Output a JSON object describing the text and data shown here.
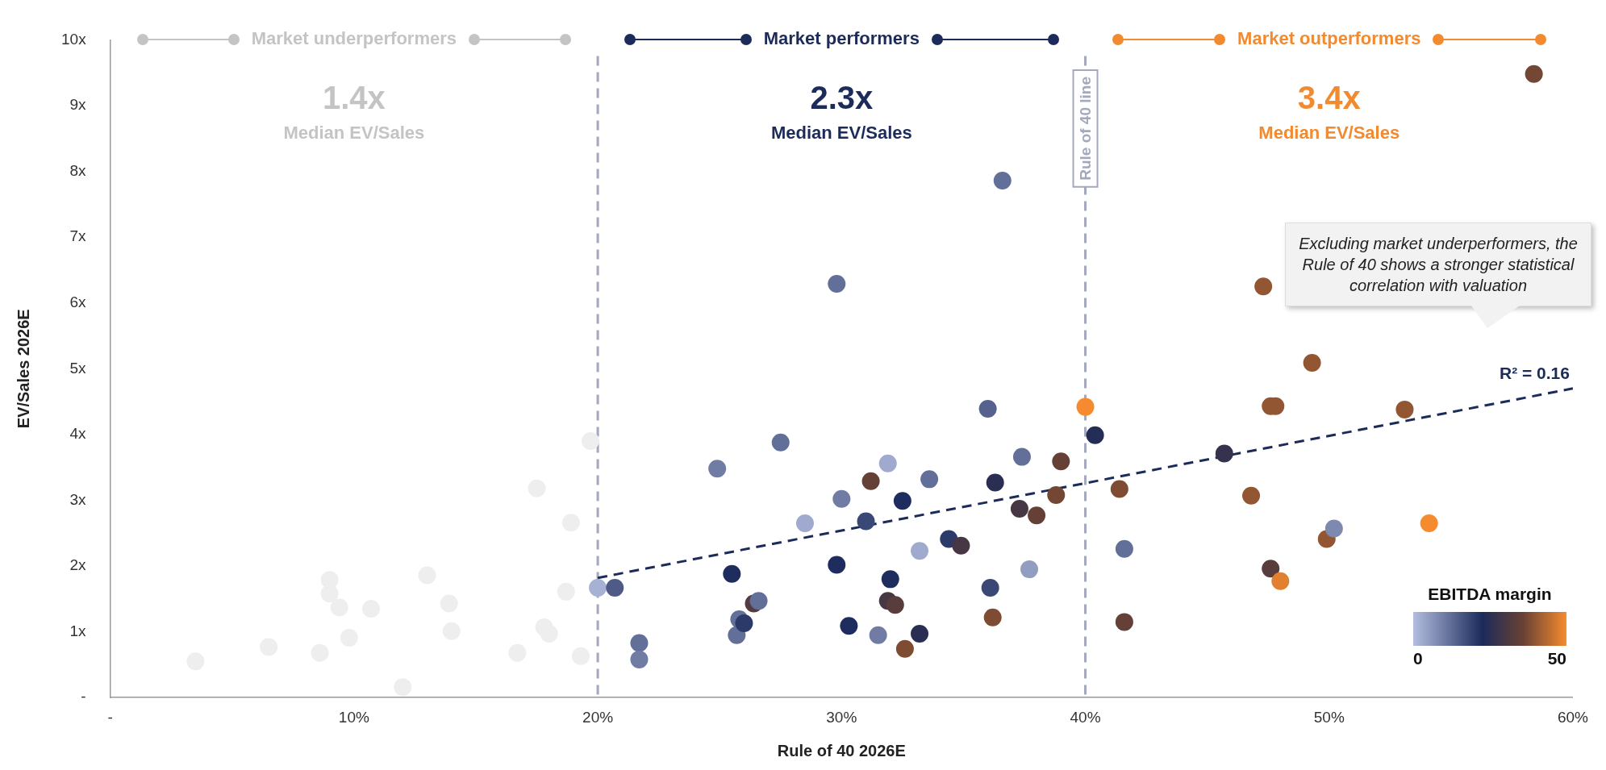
{
  "chart_data": {
    "type": "scatter",
    "xlabel": "Rule of 40 2026E",
    "ylabel": "EV/Sales 2026E",
    "clabel": "EBITDA margin",
    "xlim": [
      0,
      60
    ],
    "xticks": [
      {
        "value": 0,
        "label": "-"
      },
      {
        "value": 10,
        "label": "10%"
      },
      {
        "value": 20,
        "label": "20%"
      },
      {
        "value": 30,
        "label": "30%"
      },
      {
        "value": 40,
        "label": "40%"
      },
      {
        "value": 50,
        "label": "50%"
      },
      {
        "value": 60,
        "label": "60%"
      }
    ],
    "ylim": [
      0,
      10
    ],
    "yticks": [
      {
        "value": 0,
        "label": "-"
      },
      {
        "value": 1,
        "label": "1x"
      },
      {
        "value": 2,
        "label": "2x"
      },
      {
        "value": 3,
        "label": "3x"
      },
      {
        "value": 4,
        "label": "4x"
      },
      {
        "value": 5,
        "label": "5x"
      },
      {
        "value": 6,
        "label": "6x"
      },
      {
        "value": 7,
        "label": "7x"
      },
      {
        "value": 8,
        "label": "8x"
      },
      {
        "value": 9,
        "label": "9x"
      },
      {
        "value": 10,
        "label": "10x"
      }
    ],
    "grid": false,
    "legend": false,
    "marker": "circle",
    "series": [
      {
        "color": "#eeeeee",
        "x": [
          3.5,
          6.5,
          8.6,
          9.0,
          9.0,
          9.4,
          9.8,
          10.7,
          12.0,
          13.0,
          13.9,
          14.0,
          16.7,
          17.5,
          17.8,
          18.0,
          18.7,
          18.9,
          19.3,
          19.7
        ],
        "values": [
          0.55,
          0.77,
          0.68,
          1.79,
          1.58,
          1.37,
          0.91,
          1.35,
          0.16,
          1.86,
          1.43,
          1.01,
          0.68,
          3.18,
          1.07,
          0.97,
          1.61,
          2.66,
          0.63,
          3.9
        ]
      },
      {
        "x": [
          20.0,
          20.7,
          21.7,
          21.7,
          24.9,
          25.5,
          25.8,
          25.7,
          26.0,
          26.4,
          26.6,
          27.5,
          28.5,
          29.8,
          29.8,
          30.0,
          30.3,
          31.0,
          31.2,
          31.5,
          31.9,
          32.0,
          31.9,
          32.2,
          32.5,
          32.6,
          33.2,
          33.2,
          33.6,
          34.4,
          34.9,
          36.0,
          36.1,
          36.2,
          36.3,
          36.6,
          37.4,
          37.3,
          37.7,
          38.0,
          38.8,
          39.0,
          40.0,
          40.4,
          41.4,
          41.6,
          41.6,
          45.7,
          46.8,
          47.3,
          47.6,
          47.6,
          47.8,
          48.0,
          49.3,
          49.9,
          50.2,
          53.1,
          54.1,
          58.4
        ],
        "values": [
          1.67,
          1.67,
          0.83,
          0.58,
          3.48,
          1.88,
          1.19,
          0.95,
          1.13,
          1.43,
          1.47,
          3.88,
          2.65,
          2.02,
          6.29,
          3.02,
          1.09,
          2.68,
          3.29,
          0.95,
          3.56,
          1.8,
          1.47,
          1.41,
          2.99,
          0.74,
          2.23,
          0.97,
          3.32,
          2.41,
          2.31,
          4.39,
          1.67,
          1.22,
          3.27,
          7.86,
          3.66,
          2.87,
          1.95,
          2.77,
          3.08,
          3.59,
          4.42,
          3.99,
          3.17,
          2.26,
          1.15,
          3.71,
          3.07,
          6.25,
          1.96,
          4.43,
          4.43,
          1.77,
          5.09,
          2.41,
          2.57,
          4.38,
          2.65,
          9.48
        ],
        "colors": [
          "#a6b1d4",
          "#4e5b87",
          "#626f99",
          "#707ca4",
          "#707ca4",
          "#1e2d5d",
          "#626f99",
          "#626f99",
          "#2c3a69",
          "#533b3f",
          "#626f99",
          "#626f99",
          "#a0aace",
          "#1e2d5d",
          "#626f99",
          "#707ca4",
          "#1e2d5d",
          "#3a4875",
          "#644037",
          "#707ca4",
          "#a0aace",
          "#1e2d5d",
          "#473745",
          "#583d3c",
          "#1e2d5d",
          "#7e4c33",
          "#a0aace",
          "#2a2e53",
          "#626f99",
          "#2c3a69",
          "#473745",
          "#55628d",
          "#3a4875",
          "#7e4c33",
          "#2a2e53",
          "#626f99",
          "#626f99",
          "#473745",
          "#929dc2",
          "#644037",
          "#744734",
          "#644037",
          "#f58b2e",
          "#242d56",
          "#7e4c33",
          "#626f99",
          "#644037",
          "#35324d",
          "#925732",
          "#925732",
          "#583d3c",
          "#925732",
          "#925732",
          "#e1812f",
          "#925732",
          "#925732",
          "#7e89b0",
          "#925732",
          "#f58b2e",
          "#744734"
        ]
      },
      {
        "type": "line",
        "color": "#1c2b59",
        "line_style": "dashed",
        "marker": "none",
        "x": [
          20,
          60
        ],
        "values": [
          1.82,
          4.7
        ]
      }
    ],
    "ref_lines": [
      {
        "axis": "x",
        "value": 20,
        "color": "#a3a8bd",
        "line_style": "dashed"
      },
      {
        "axis": "x",
        "value": 40,
        "label": "Rule of 40 line",
        "color": "#a3a8bd",
        "line_style": "dashed"
      }
    ],
    "annotations": [
      "Market underperformers",
      "1.4x",
      "Median EV/Sales",
      "Market performers",
      "2.3x",
      "Median EV/Sales",
      "Market outperformers",
      "3.4x",
      "Median EV/Sales",
      "Excluding market underperformers, the Rule of 40 shows a stronger statistical correlation with valuation",
      "R² = 0.16",
      "0",
      "50"
    ]
  }
}
